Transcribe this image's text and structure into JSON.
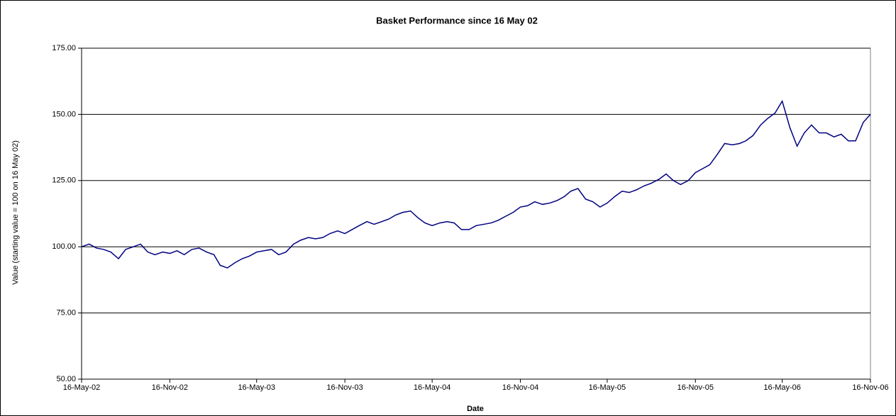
{
  "chart_data": {
    "type": "line",
    "title": "Basket Performance since 16 May 02",
    "x_label": "Date",
    "y_label": "Value (starting value = 100 on 16 May 02)",
    "x": [
      "2002-05-16",
      "2002-06-01",
      "2002-06-16",
      "2002-07-01",
      "2002-07-16",
      "2002-08-01",
      "2002-08-16",
      "2002-09-01",
      "2002-09-16",
      "2002-10-01",
      "2002-10-16",
      "2002-11-01",
      "2002-11-16",
      "2002-12-01",
      "2002-12-16",
      "2003-01-01",
      "2003-01-16",
      "2003-02-01",
      "2003-02-16",
      "2003-03-01",
      "2003-03-16",
      "2003-04-01",
      "2003-04-16",
      "2003-05-01",
      "2003-05-16",
      "2003-06-01",
      "2003-06-16",
      "2003-07-01",
      "2003-07-16",
      "2003-08-01",
      "2003-08-16",
      "2003-09-01",
      "2003-09-16",
      "2003-10-01",
      "2003-10-16",
      "2003-11-01",
      "2003-11-16",
      "2003-12-01",
      "2003-12-16",
      "2004-01-01",
      "2004-01-16",
      "2004-02-01",
      "2004-02-16",
      "2004-03-01",
      "2004-03-16",
      "2004-04-01",
      "2004-04-16",
      "2004-05-01",
      "2004-05-16",
      "2004-06-01",
      "2004-06-16",
      "2004-07-01",
      "2004-07-16",
      "2004-08-01",
      "2004-08-16",
      "2004-09-01",
      "2004-09-16",
      "2004-10-01",
      "2004-10-16",
      "2004-11-01",
      "2004-11-16",
      "2004-12-01",
      "2004-12-16",
      "2005-01-01",
      "2005-01-16",
      "2005-02-01",
      "2005-02-16",
      "2005-03-01",
      "2005-03-16",
      "2005-04-01",
      "2005-04-16",
      "2005-05-01",
      "2005-05-16",
      "2005-06-01",
      "2005-06-16",
      "2005-07-01",
      "2005-07-16",
      "2005-08-01",
      "2005-08-16",
      "2005-09-01",
      "2005-09-16",
      "2005-10-01",
      "2005-10-16",
      "2005-11-01",
      "2005-11-16",
      "2005-12-01",
      "2005-12-16",
      "2006-01-01",
      "2006-01-16",
      "2006-02-01",
      "2006-02-16",
      "2006-03-01",
      "2006-03-16",
      "2006-04-01",
      "2006-04-16",
      "2006-05-01",
      "2006-05-16",
      "2006-06-01",
      "2006-06-16",
      "2006-07-01",
      "2006-07-16",
      "2006-08-01",
      "2006-08-16",
      "2006-09-01",
      "2006-09-16",
      "2006-10-01",
      "2006-10-16",
      "2006-11-01",
      "2006-11-16"
    ],
    "series": [
      {
        "name": "Basket",
        "color": "#000080",
        "values": [
          100,
          101,
          99.5,
          99,
          98,
          95.5,
          99,
          100,
          101,
          98,
          97,
          98,
          97.5,
          98.5,
          97,
          99,
          99.5,
          98,
          97,
          93,
          92,
          94,
          95.5,
          96.5,
          98,
          98.5,
          99,
          97,
          98,
          101,
          102.5,
          103.5,
          103,
          103.5,
          105,
          106,
          105,
          106.5,
          108,
          109.5,
          108.5,
          109.5,
          110.5,
          112,
          113,
          113.5,
          111,
          109,
          108,
          109,
          109.5,
          109,
          106.5,
          106.5,
          108,
          108.5,
          109,
          110,
          111.5,
          113,
          115,
          115.5,
          117,
          116,
          116.5,
          117.5,
          119,
          121,
          122,
          118,
          117,
          115,
          116.5,
          119,
          121,
          120.5,
          121.5,
          123,
          124,
          125.5,
          127.5,
          125,
          123.5,
          125,
          128,
          129.5,
          131,
          135,
          139,
          138.5,
          139,
          140,
          142,
          146,
          148.5,
          150.5,
          155,
          145,
          138,
          143,
          146,
          143,
          143,
          141.5,
          142.5,
          140,
          140,
          147,
          150
        ]
      }
    ],
    "xlim": [
      "2002-05-16",
      "2006-11-16"
    ],
    "xticks": [
      {
        "value": "2002-05-16",
        "label": "16-May-02"
      },
      {
        "value": "2002-11-16",
        "label": "16-Nov-02"
      },
      {
        "value": "2003-05-16",
        "label": "16-May-03"
      },
      {
        "value": "2003-11-16",
        "label": "16-Nov-03"
      },
      {
        "value": "2004-05-16",
        "label": "16-May-04"
      },
      {
        "value": "2004-11-16",
        "label": "16-Nov-04"
      },
      {
        "value": "2005-05-16",
        "label": "16-May-05"
      },
      {
        "value": "2005-11-16",
        "label": "16-Nov-05"
      },
      {
        "value": "2006-05-16",
        "label": "16-May-06"
      },
      {
        "value": "2006-11-16",
        "label": "16-Nov-06"
      }
    ],
    "ylim": [
      50,
      175
    ],
    "yticks": [
      {
        "value": 50,
        "label": "50.00"
      },
      {
        "value": 75,
        "label": "75.00"
      },
      {
        "value": 100,
        "label": "100.00"
      },
      {
        "value": 125,
        "label": "125.00"
      },
      {
        "value": 150,
        "label": "150.00"
      },
      {
        "value": 175,
        "label": "175.00"
      }
    ],
    "grid": true
  }
}
